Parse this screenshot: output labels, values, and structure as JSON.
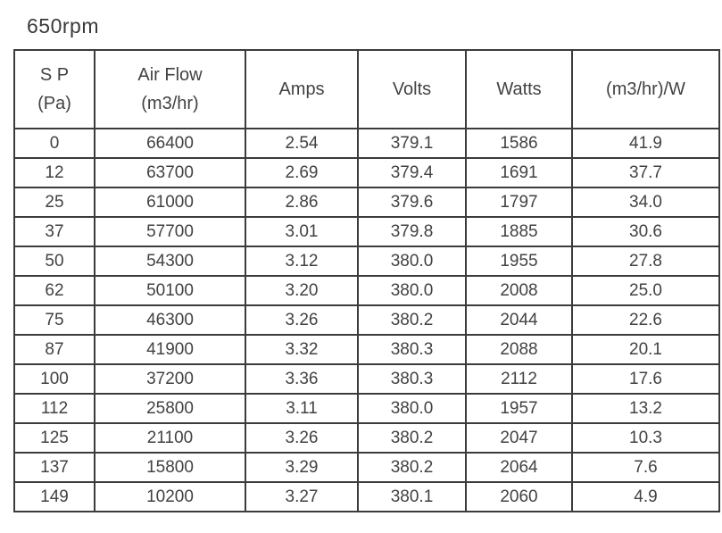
{
  "page": {
    "title": "650rpm"
  },
  "colors": {
    "background": "#ffffff",
    "border": "#3b3b3b",
    "text": "#424242"
  },
  "table": {
    "columns": [
      [
        "S P",
        "(Pa)"
      ],
      [
        "Air Flow",
        "(m3/hr)"
      ],
      [
        "Amps"
      ],
      [
        "Volts"
      ],
      [
        "Watts"
      ],
      [
        "(m3/hr)/W"
      ]
    ],
    "rows": [
      [
        "0",
        "66400",
        "2.54",
        "379.1",
        "1586",
        "41.9"
      ],
      [
        "12",
        "63700",
        "2.69",
        "379.4",
        "1691",
        "37.7"
      ],
      [
        "25",
        "61000",
        "2.86",
        "379.6",
        "1797",
        "34.0"
      ],
      [
        "37",
        "57700",
        "3.01",
        "379.8",
        "1885",
        "30.6"
      ],
      [
        "50",
        "54300",
        "3.12",
        "380.0",
        "1955",
        "27.8"
      ],
      [
        "62",
        "50100",
        "3.20",
        "380.0",
        "2008",
        "25.0"
      ],
      [
        "75",
        "46300",
        "3.26",
        "380.2",
        "2044",
        "22.6"
      ],
      [
        "87",
        "41900",
        "3.32",
        "380.3",
        "2088",
        "20.1"
      ],
      [
        "100",
        "37200",
        "3.36",
        "380.3",
        "2112",
        "17.6"
      ],
      [
        "112",
        "25800",
        "3.11",
        "380.0",
        "1957",
        "13.2"
      ],
      [
        "125",
        "21100",
        "3.26",
        "380.2",
        "2047",
        "10.3"
      ],
      [
        "137",
        "15800",
        "3.29",
        "380.2",
        "2064",
        "7.6"
      ],
      [
        "149",
        "10200",
        "3.27",
        "380.1",
        "2060",
        "4.9"
      ]
    ]
  }
}
